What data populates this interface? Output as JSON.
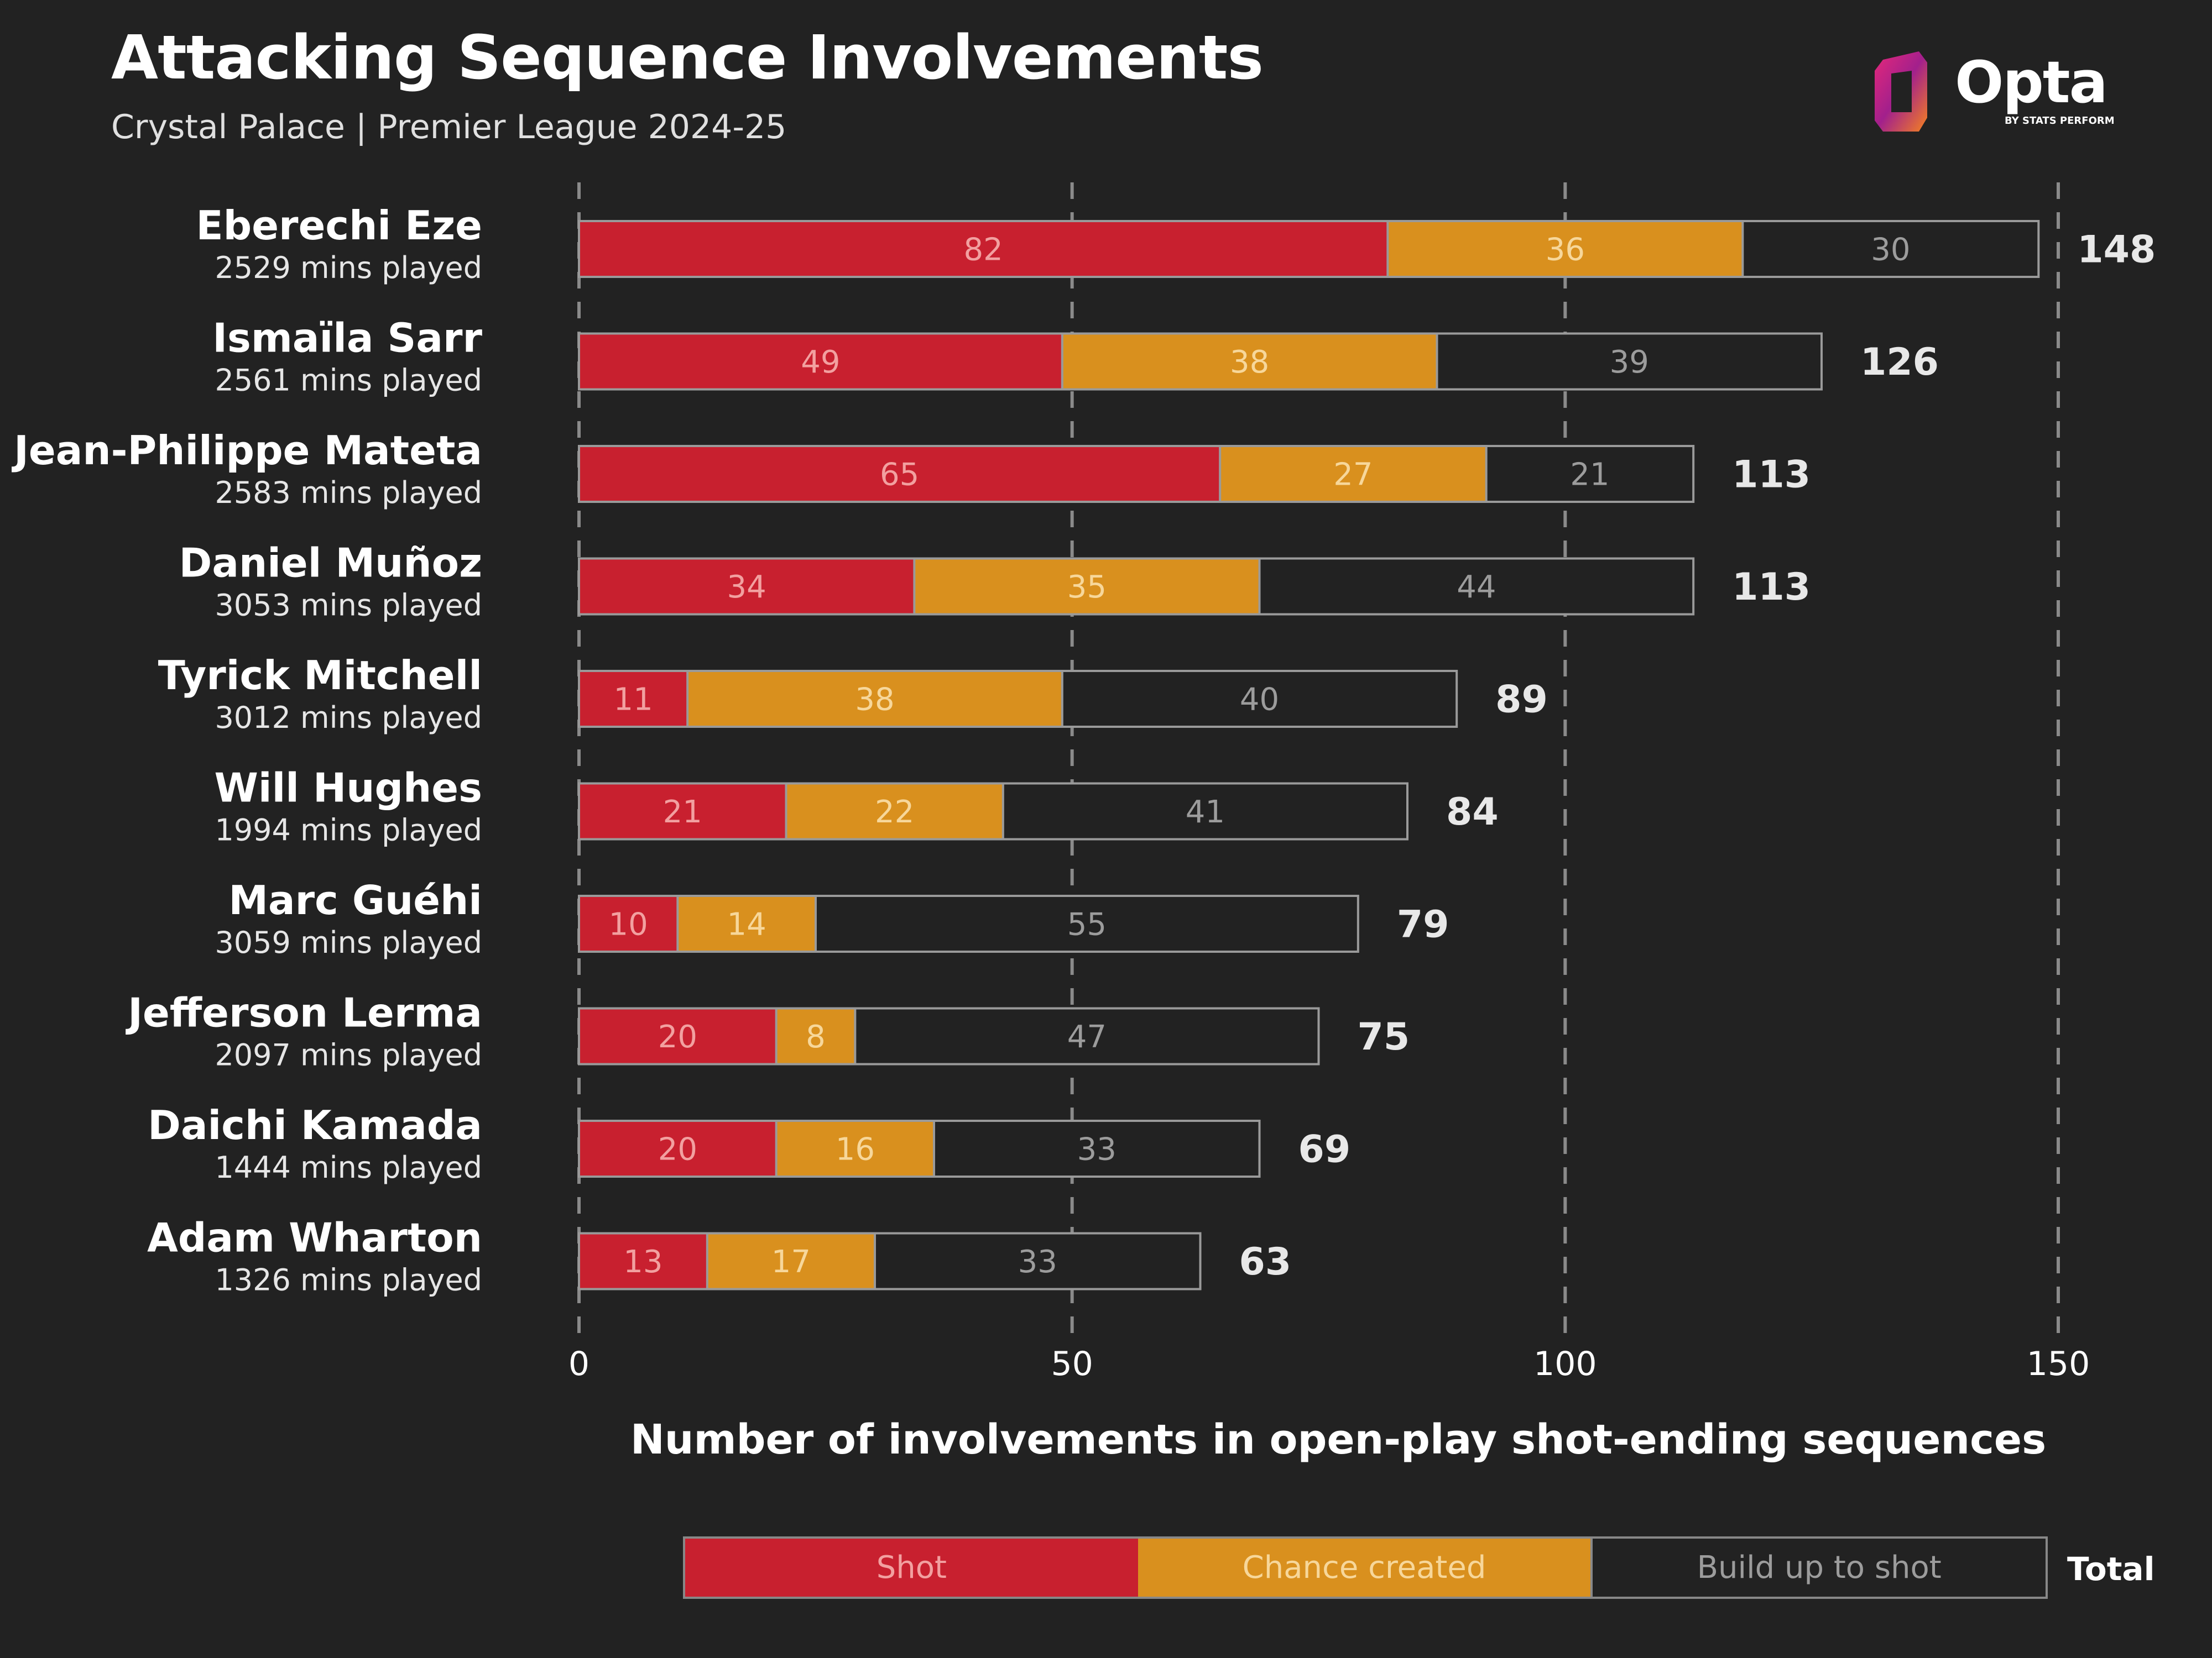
{
  "header": {
    "title": "Attacking Sequence Involvements",
    "subtitle": "Crystal Palace | Premier League 2024-25"
  },
  "logo": {
    "name": "Opta",
    "sub": "BY STATS PERFORM",
    "icon": "opta-logo-icon"
  },
  "colors": {
    "shot": "#c8202f",
    "chance": "#d9901e",
    "build": "#222222",
    "background": "#222222"
  },
  "legend": {
    "shot": "Shot",
    "chance": "Chance created",
    "build": "Build up to shot",
    "total": "Total"
  },
  "chart_data": {
    "type": "bar",
    "orientation": "horizontal",
    "stacked": true,
    "xlabel": "Number of involvements in open-play shot-ending sequences",
    "xlim": [
      0,
      150
    ],
    "xticks": [
      0,
      50,
      100,
      150
    ],
    "grid": "vertical dashed at ticks",
    "categories": [
      "Eberechi Eze",
      "Ismaïla Sarr",
      "Jean-Philippe Mateta",
      "Daniel Muñoz",
      "Tyrick Mitchell",
      "Will Hughes",
      "Marc Guéhi",
      "Jefferson Lerma",
      "Daichi Kamada",
      "Adam Wharton"
    ],
    "minutes": [
      "2529 mins played",
      "2561 mins played",
      "2583 mins played",
      "3053 mins played",
      "3012 mins played",
      "1994 mins played",
      "3059 mins played",
      "2097 mins played",
      "1444 mins played",
      "1326 mins played"
    ],
    "series": [
      {
        "name": "Shot",
        "values": [
          82,
          49,
          65,
          34,
          11,
          21,
          10,
          20,
          20,
          13
        ]
      },
      {
        "name": "Chance created",
        "values": [
          36,
          38,
          27,
          35,
          38,
          22,
          14,
          8,
          16,
          17
        ]
      },
      {
        "name": "Build up to shot",
        "values": [
          30,
          39,
          21,
          44,
          40,
          41,
          55,
          47,
          33,
          33
        ]
      }
    ],
    "totals": [
      148,
      126,
      113,
      113,
      89,
      84,
      79,
      75,
      69,
      63
    ]
  }
}
